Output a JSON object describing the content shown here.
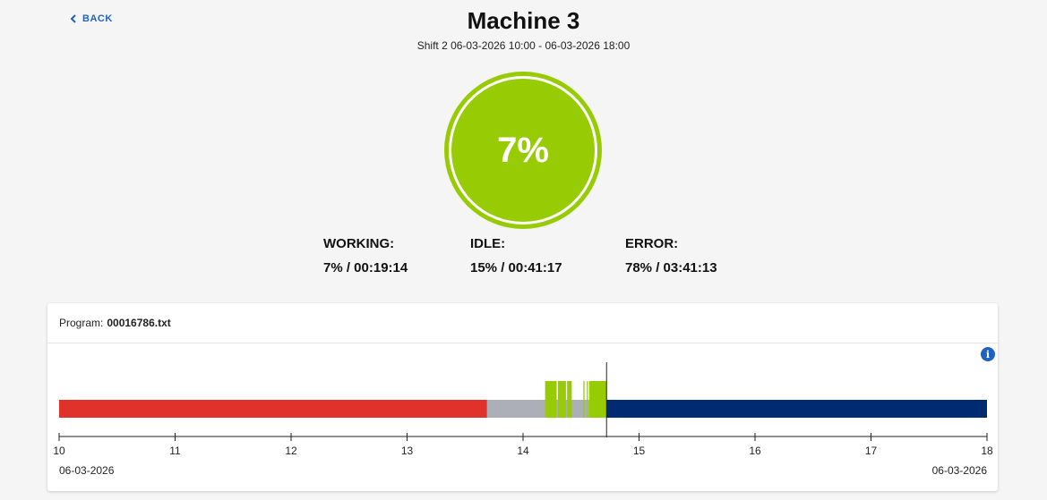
{
  "header": {
    "back_label": "BACK",
    "title": "Machine 3",
    "subtitle": "Shift 2 06-03-2026 10:00 - 06-03-2026 18:00"
  },
  "gauge": {
    "value_label": "7%",
    "value": 7,
    "color": "#97cc04"
  },
  "stats": [
    {
      "label": "WORKING:",
      "value": "7% / 00:19:14"
    },
    {
      "label": "IDLE:",
      "value": "15% / 00:41:17"
    },
    {
      "label": "ERROR:",
      "value": "78% / 03:41:13"
    }
  ],
  "program": {
    "label": "Program:",
    "value": "00016786.txt"
  },
  "timeline": {
    "start_hour": 10,
    "end_hour": 18,
    "ticks": [
      "10",
      "11",
      "12",
      "13",
      "14",
      "15",
      "16",
      "17",
      "18"
    ],
    "date_start": "06-03-2026",
    "date_end": "06-03-2026",
    "current_hour": 14.72,
    "colors": {
      "error": "#e0322a",
      "idle": "#acafb8",
      "working": "#97cc04",
      "future": "#002b73"
    },
    "segments": [
      {
        "state": "error",
        "from": 10.0,
        "to": 13.69
      },
      {
        "state": "idle",
        "from": 13.69,
        "to": 14.72
      },
      {
        "state": "future",
        "from": 14.72,
        "to": 18.0
      }
    ],
    "working_marks": [
      {
        "from": 14.19,
        "to": 14.29
      },
      {
        "from": 14.3,
        "to": 14.37
      },
      {
        "from": 14.38,
        "to": 14.42
      },
      {
        "from": 14.52,
        "to": 14.53
      },
      {
        "from": 14.55,
        "to": 14.56
      },
      {
        "from": 14.57,
        "to": 14.72
      }
    ]
  }
}
